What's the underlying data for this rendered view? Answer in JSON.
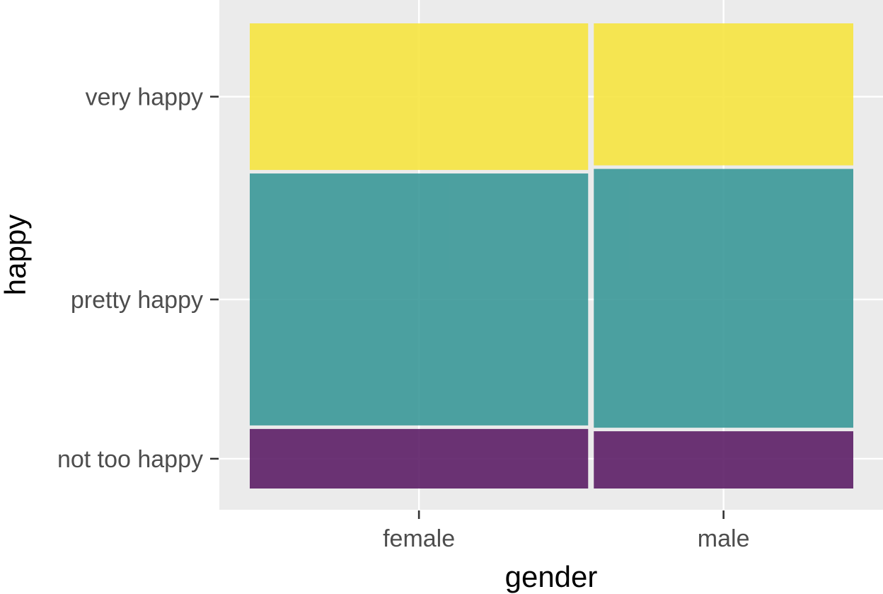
{
  "chart_data": {
    "type": "mosaic",
    "xlabel": "gender",
    "ylabel": "happy",
    "categories": [
      "female",
      "male"
    ],
    "levels": [
      "not too happy",
      "pretty happy",
      "very happy"
    ],
    "column_widths": [
      0.566,
      0.434
    ],
    "proportions": {
      "female": [
        0.13,
        0.55,
        0.32
      ],
      "male": [
        0.125,
        0.565,
        0.31
      ]
    },
    "ylim": [
      0,
      1
    ],
    "grid": true,
    "legend": "none",
    "colors": {
      "not too happy": "#5c1e66",
      "pretty happy": "#3a9898",
      "very happy": "#f6e440"
    }
  }
}
